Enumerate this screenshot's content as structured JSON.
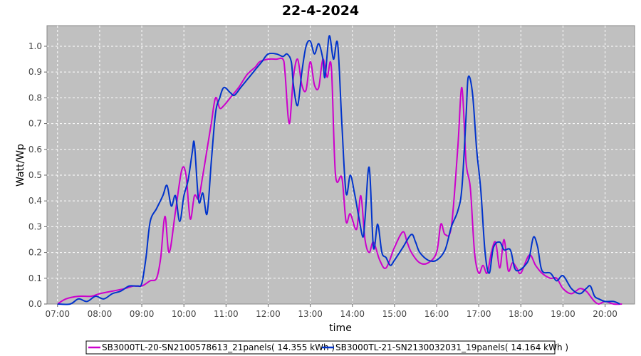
{
  "chart_data": {
    "type": "line",
    "title": "22-4-2024",
    "xlabel": "time",
    "ylabel": "Watt/Wp",
    "x_unit": "hour of day",
    "xlim": [
      6.75,
      20.7
    ],
    "ylim": [
      0,
      1.08
    ],
    "x_ticks": [
      "07:00",
      "08:00",
      "09:00",
      "10:00",
      "11:00",
      "12:00",
      "13:00",
      "14:00",
      "15:00",
      "16:00",
      "17:00",
      "18:00",
      "19:00",
      "20:00"
    ],
    "y_ticks": [
      "0.0",
      "0.1",
      "0.2",
      "0.3",
      "0.4",
      "0.5",
      "0.6",
      "0.7",
      "0.8",
      "0.9",
      "1.0"
    ],
    "grid": true,
    "legend_position": "bottom",
    "series": [
      {
        "name": "SB3000TL-20-SN2100578613_21panels( 14.355 kWh )",
        "color": "#cc00cc",
        "points": [
          [
            7.0,
            0.0
          ],
          [
            7.2,
            0.02
          ],
          [
            7.5,
            0.03
          ],
          [
            7.8,
            0.03
          ],
          [
            8.0,
            0.04
          ],
          [
            8.3,
            0.05
          ],
          [
            8.6,
            0.06
          ],
          [
            8.8,
            0.07
          ],
          [
            9.0,
            0.07
          ],
          [
            9.2,
            0.09
          ],
          [
            9.35,
            0.1
          ],
          [
            9.45,
            0.18
          ],
          [
            9.55,
            0.34
          ],
          [
            9.65,
            0.2
          ],
          [
            9.8,
            0.36
          ],
          [
            9.95,
            0.52
          ],
          [
            10.05,
            0.5
          ],
          [
            10.15,
            0.33
          ],
          [
            10.25,
            0.42
          ],
          [
            10.35,
            0.41
          ],
          [
            10.45,
            0.5
          ],
          [
            10.55,
            0.6
          ],
          [
            10.65,
            0.7
          ],
          [
            10.75,
            0.8
          ],
          [
            10.85,
            0.76
          ],
          [
            10.95,
            0.77
          ],
          [
            11.1,
            0.8
          ],
          [
            11.3,
            0.84
          ],
          [
            11.5,
            0.89
          ],
          [
            11.7,
            0.92
          ],
          [
            11.8,
            0.94
          ],
          [
            12.0,
            0.95
          ],
          [
            12.2,
            0.95
          ],
          [
            12.35,
            0.95
          ],
          [
            12.4,
            0.9
          ],
          [
            12.5,
            0.7
          ],
          [
            12.6,
            0.88
          ],
          [
            12.7,
            0.95
          ],
          [
            12.8,
            0.85
          ],
          [
            12.9,
            0.83
          ],
          [
            13.0,
            0.94
          ],
          [
            13.1,
            0.85
          ],
          [
            13.2,
            0.84
          ],
          [
            13.3,
            0.95
          ],
          [
            13.4,
            0.88
          ],
          [
            13.5,
            0.92
          ],
          [
            13.6,
            0.5
          ],
          [
            13.75,
            0.49
          ],
          [
            13.85,
            0.32
          ],
          [
            13.95,
            0.35
          ],
          [
            14.1,
            0.29
          ],
          [
            14.2,
            0.42
          ],
          [
            14.3,
            0.25
          ],
          [
            14.4,
            0.2
          ],
          [
            14.5,
            0.24
          ],
          [
            14.65,
            0.17
          ],
          [
            14.8,
            0.14
          ],
          [
            15.0,
            0.22
          ],
          [
            15.2,
            0.28
          ],
          [
            15.3,
            0.24
          ],
          [
            15.4,
            0.2
          ],
          [
            15.6,
            0.16
          ],
          [
            15.8,
            0.16
          ],
          [
            16.0,
            0.2
          ],
          [
            16.1,
            0.31
          ],
          [
            16.2,
            0.27
          ],
          [
            16.35,
            0.3
          ],
          [
            16.5,
            0.6
          ],
          [
            16.6,
            0.84
          ],
          [
            16.7,
            0.55
          ],
          [
            16.8,
            0.45
          ],
          [
            16.9,
            0.2
          ],
          [
            17.0,
            0.12
          ],
          [
            17.1,
            0.15
          ],
          [
            17.2,
            0.12
          ],
          [
            17.3,
            0.2
          ],
          [
            17.4,
            0.24
          ],
          [
            17.5,
            0.14
          ],
          [
            17.6,
            0.25
          ],
          [
            17.7,
            0.13
          ],
          [
            17.8,
            0.16
          ],
          [
            17.9,
            0.14
          ],
          [
            18.0,
            0.12
          ],
          [
            18.2,
            0.19
          ],
          [
            18.35,
            0.15
          ],
          [
            18.5,
            0.12
          ],
          [
            18.7,
            0.1
          ],
          [
            18.85,
            0.1
          ],
          [
            19.0,
            0.06
          ],
          [
            19.2,
            0.04
          ],
          [
            19.4,
            0.06
          ],
          [
            19.55,
            0.05
          ],
          [
            19.65,
            0.03
          ],
          [
            19.75,
            0.01
          ],
          [
            19.85,
            0.0
          ],
          [
            20.0,
            0.01
          ],
          [
            20.2,
            0.0
          ],
          [
            20.4,
            0.0
          ]
        ]
      },
      {
        "name": "SB3000TL-21-SN2130032031_19panels( 14.164 kWh )",
        "color": "#0033cc",
        "points": [
          [
            7.0,
            0.0
          ],
          [
            7.3,
            0.0
          ],
          [
            7.5,
            0.02
          ],
          [
            7.7,
            0.01
          ],
          [
            7.9,
            0.03
          ],
          [
            8.1,
            0.02
          ],
          [
            8.3,
            0.04
          ],
          [
            8.5,
            0.05
          ],
          [
            8.7,
            0.07
          ],
          [
            8.9,
            0.07
          ],
          [
            9.0,
            0.08
          ],
          [
            9.1,
            0.18
          ],
          [
            9.2,
            0.32
          ],
          [
            9.35,
            0.37
          ],
          [
            9.5,
            0.42
          ],
          [
            9.6,
            0.46
          ],
          [
            9.7,
            0.38
          ],
          [
            9.8,
            0.42
          ],
          [
            9.9,
            0.32
          ],
          [
            10.0,
            0.42
          ],
          [
            10.1,
            0.48
          ],
          [
            10.2,
            0.59
          ],
          [
            10.25,
            0.62
          ],
          [
            10.35,
            0.4
          ],
          [
            10.45,
            0.43
          ],
          [
            10.55,
            0.35
          ],
          [
            10.65,
            0.55
          ],
          [
            10.75,
            0.74
          ],
          [
            10.85,
            0.8
          ],
          [
            10.95,
            0.84
          ],
          [
            11.1,
            0.82
          ],
          [
            11.2,
            0.81
          ],
          [
            11.35,
            0.84
          ],
          [
            11.5,
            0.87
          ],
          [
            11.7,
            0.91
          ],
          [
            11.85,
            0.94
          ],
          [
            12.0,
            0.97
          ],
          [
            12.2,
            0.97
          ],
          [
            12.35,
            0.96
          ],
          [
            12.45,
            0.97
          ],
          [
            12.55,
            0.94
          ],
          [
            12.6,
            0.85
          ],
          [
            12.7,
            0.77
          ],
          [
            12.8,
            0.9
          ],
          [
            12.9,
            1.0
          ],
          [
            13.0,
            1.02
          ],
          [
            13.1,
            0.97
          ],
          [
            13.2,
            1.01
          ],
          [
            13.3,
            0.95
          ],
          [
            13.35,
            0.88
          ],
          [
            13.45,
            1.04
          ],
          [
            13.55,
            0.95
          ],
          [
            13.65,
            1.01
          ],
          [
            13.75,
            0.7
          ],
          [
            13.85,
            0.43
          ],
          [
            13.95,
            0.5
          ],
          [
            14.05,
            0.43
          ],
          [
            14.15,
            0.34
          ],
          [
            14.25,
            0.26
          ],
          [
            14.3,
            0.33
          ],
          [
            14.4,
            0.53
          ],
          [
            14.5,
            0.22
          ],
          [
            14.6,
            0.31
          ],
          [
            14.7,
            0.2
          ],
          [
            14.8,
            0.18
          ],
          [
            14.9,
            0.15
          ],
          [
            15.0,
            0.17
          ],
          [
            15.2,
            0.22
          ],
          [
            15.4,
            0.27
          ],
          [
            15.5,
            0.24
          ],
          [
            15.6,
            0.2
          ],
          [
            15.8,
            0.17
          ],
          [
            16.0,
            0.17
          ],
          [
            16.2,
            0.21
          ],
          [
            16.35,
            0.3
          ],
          [
            16.5,
            0.36
          ],
          [
            16.6,
            0.45
          ],
          [
            16.7,
            0.73
          ],
          [
            16.75,
            0.88
          ],
          [
            16.85,
            0.82
          ],
          [
            16.95,
            0.6
          ],
          [
            17.05,
            0.44
          ],
          [
            17.15,
            0.2
          ],
          [
            17.25,
            0.12
          ],
          [
            17.35,
            0.22
          ],
          [
            17.5,
            0.24
          ],
          [
            17.6,
            0.21
          ],
          [
            17.75,
            0.21
          ],
          [
            17.85,
            0.14
          ],
          [
            17.95,
            0.13
          ],
          [
            18.1,
            0.15
          ],
          [
            18.2,
            0.18
          ],
          [
            18.3,
            0.26
          ],
          [
            18.4,
            0.22
          ],
          [
            18.5,
            0.13
          ],
          [
            18.7,
            0.12
          ],
          [
            18.85,
            0.09
          ],
          [
            19.0,
            0.11
          ],
          [
            19.2,
            0.06
          ],
          [
            19.4,
            0.04
          ],
          [
            19.55,
            0.06
          ],
          [
            19.65,
            0.07
          ],
          [
            19.75,
            0.03
          ],
          [
            19.85,
            0.02
          ],
          [
            20.0,
            0.01
          ],
          [
            20.2,
            0.01
          ],
          [
            20.35,
            0.0
          ]
        ]
      }
    ]
  }
}
